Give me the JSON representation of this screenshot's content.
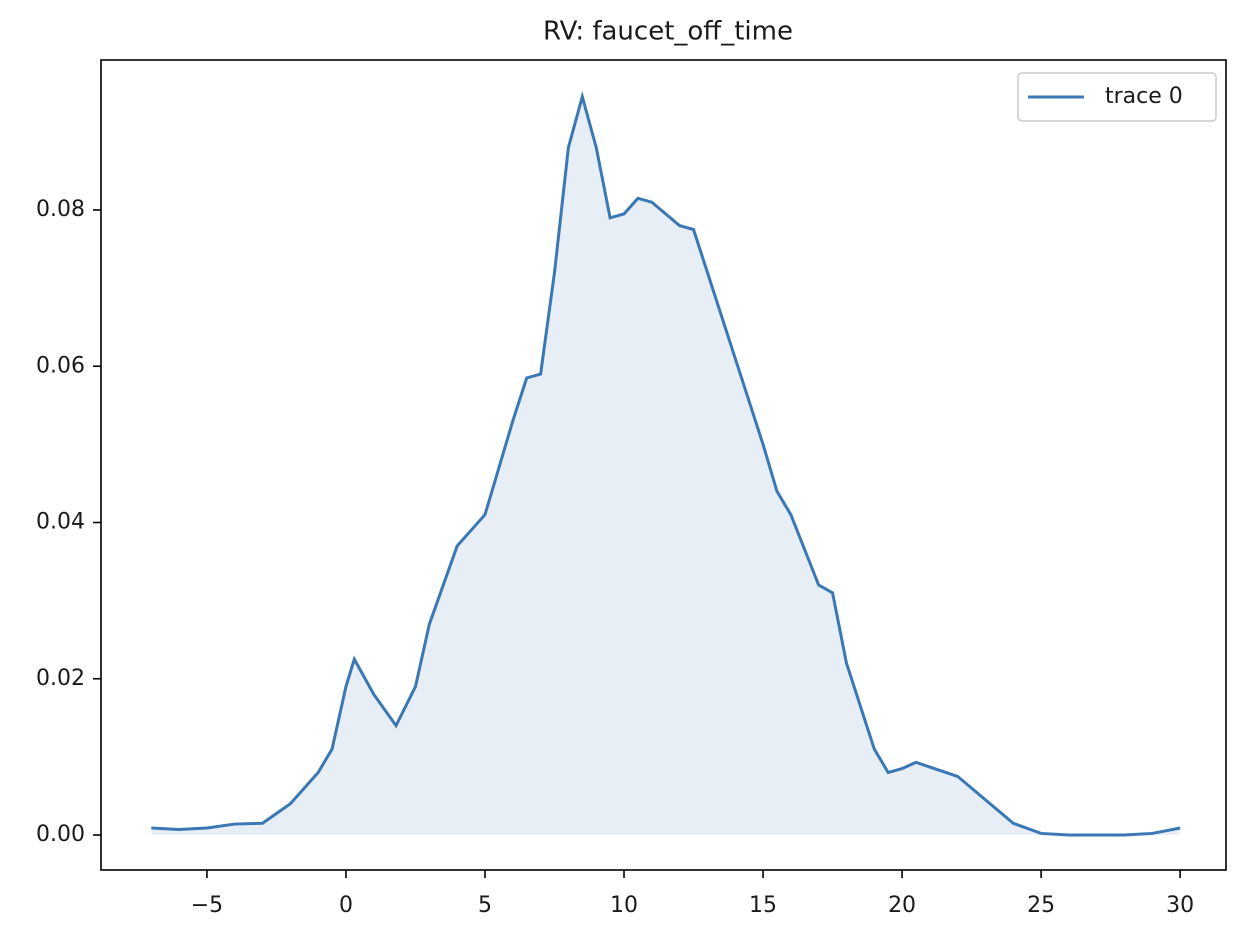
{
  "chart_data": {
    "type": "line",
    "title": "RV: faucet_off_time",
    "x": [
      -7,
      -6,
      -5,
      -4,
      -3,
      -2,
      -1,
      -0.5,
      0,
      0.3,
      1,
      1.8,
      2.5,
      3,
      4,
      5,
      6,
      6.5,
      7,
      7.5,
      8,
      8.5,
      9,
      9.5,
      10,
      10.5,
      11,
      12,
      12.5,
      13,
      14,
      15,
      15.5,
      16,
      17,
      17.5,
      18,
      19,
      19.5,
      20,
      20.5,
      21,
      22,
      23,
      24,
      25,
      26,
      27,
      28,
      29,
      30
    ],
    "series": [
      {
        "name": "trace 0",
        "color": "#3a78b5",
        "fill": "#e8eef6",
        "values": [
          0.0009,
          0.0007,
          0.0009,
          0.0014,
          0.0015,
          0.004,
          0.008,
          0.011,
          0.019,
          0.0225,
          0.018,
          0.014,
          0.019,
          0.027,
          0.037,
          0.041,
          0.053,
          0.0585,
          0.059,
          0.072,
          0.088,
          0.0945,
          0.088,
          0.079,
          0.0795,
          0.0815,
          0.081,
          0.078,
          0.0775,
          0.072,
          0.061,
          0.05,
          0.044,
          0.041,
          0.032,
          0.031,
          0.022,
          0.011,
          0.008,
          0.0085,
          0.0093,
          0.0087,
          0.0075,
          0.0045,
          0.0015,
          0.0002,
          0,
          0,
          0,
          0.0002,
          0.0009
        ]
      }
    ],
    "xlim": [
      -8.81,
      31.65
    ],
    "ylim": [
      -0.00448,
      0.0992
    ],
    "xticks": [
      {
        "value": -5,
        "label": "−5"
      },
      0,
      5,
      10,
      15,
      20,
      25,
      30
    ],
    "yticks": [
      {
        "value": 0,
        "label": "0.00"
      },
      {
        "value": 0.02,
        "label": "0.02"
      },
      {
        "value": 0.04,
        "label": "0.04"
      },
      {
        "value": 0.06,
        "label": "0.06"
      },
      {
        "value": 0.08,
        "label": "0.08"
      }
    ],
    "legend": "upper right",
    "grid": false
  }
}
